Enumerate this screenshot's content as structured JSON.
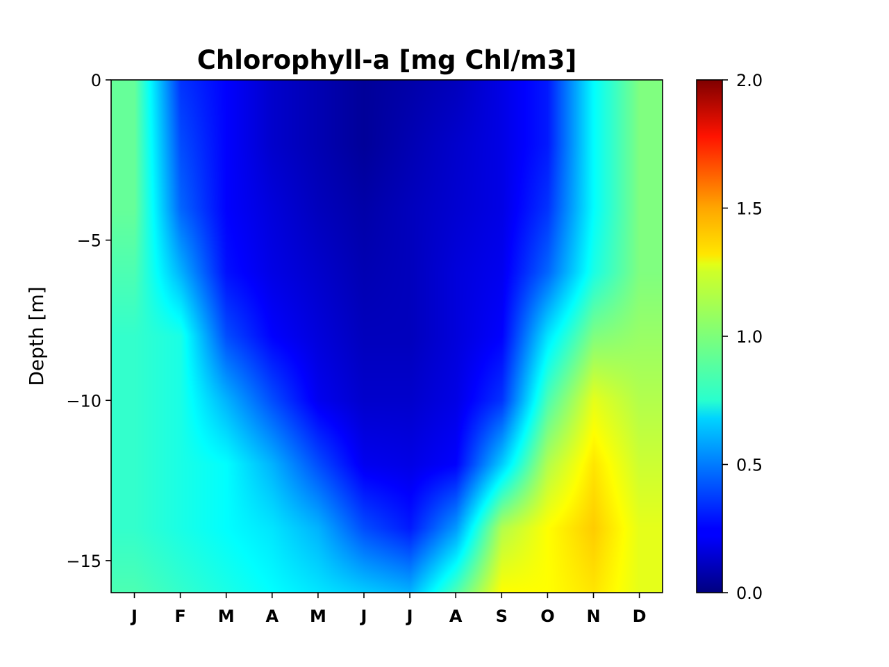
{
  "chart_data": {
    "type": "heatmap",
    "title": "Chlorophyll-a [mg Chl/m3]",
    "xlabel": "",
    "ylabel": "Depth [m]",
    "x_ticks": [
      "J",
      "F",
      "M",
      "A",
      "M",
      "J",
      "J",
      "A",
      "S",
      "O",
      "N",
      "D"
    ],
    "y_ticks": [
      0,
      -5,
      -10,
      -15
    ],
    "ylim": [
      -16,
      0
    ],
    "colorbar": {
      "colormap": "jet",
      "range": [
        0.0,
        2.0
      ],
      "ticks": [
        "0.0",
        "0.5",
        "1.0",
        "1.5",
        "2.0"
      ]
    },
    "depths": [
      0,
      -2,
      -4,
      -6,
      -8,
      -10,
      -12,
      -14,
      -16
    ],
    "months": [
      "Jan",
      "Feb",
      "Mar",
      "Apr",
      "May",
      "Jun",
      "Jul",
      "Aug",
      "Sep",
      "Oct",
      "Nov",
      "Dec"
    ],
    "values": [
      [
        0.95,
        0.35,
        0.25,
        0.15,
        0.1,
        0.05,
        0.08,
        0.12,
        0.2,
        0.3,
        0.75,
        1.0
      ],
      [
        0.95,
        0.4,
        0.25,
        0.15,
        0.1,
        0.05,
        0.1,
        0.15,
        0.2,
        0.3,
        0.75,
        1.0
      ],
      [
        0.95,
        0.45,
        0.25,
        0.18,
        0.12,
        0.08,
        0.12,
        0.16,
        0.2,
        0.35,
        0.75,
        1.0
      ],
      [
        0.9,
        0.6,
        0.28,
        0.2,
        0.15,
        0.1,
        0.12,
        0.18,
        0.22,
        0.45,
        0.8,
        1.0
      ],
      [
        0.85,
        0.8,
        0.4,
        0.25,
        0.18,
        0.12,
        0.12,
        0.18,
        0.25,
        0.7,
        1.0,
        1.05
      ],
      [
        0.85,
        0.8,
        0.6,
        0.4,
        0.22,
        0.15,
        0.15,
        0.2,
        0.35,
        0.9,
        1.2,
        1.1
      ],
      [
        0.85,
        0.8,
        0.75,
        0.6,
        0.4,
        0.22,
        0.2,
        0.25,
        0.65,
        1.1,
        1.3,
        1.15
      ],
      [
        0.85,
        0.8,
        0.75,
        0.7,
        0.6,
        0.4,
        0.3,
        0.55,
        1.1,
        1.25,
        1.35,
        1.2
      ],
      [
        0.9,
        0.85,
        0.8,
        0.75,
        0.7,
        0.65,
        0.6,
        0.9,
        1.25,
        1.25,
        1.3,
        1.2
      ]
    ]
  }
}
